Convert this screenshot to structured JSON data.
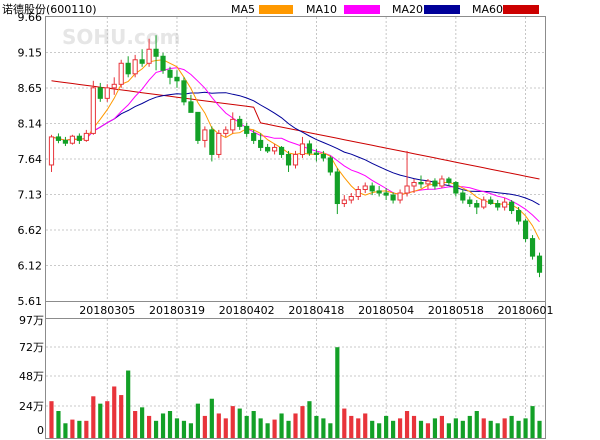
{
  "title": "诺德股份(600110)",
  "watermark": "SOHU.com",
  "colors": {
    "up": "#e8343b",
    "down": "#13a027",
    "ma5": "#ff9900",
    "ma10": "#ff00ff",
    "ma20": "#000099",
    "ma60": "#cc0000",
    "grid": "#b9b9b9"
  },
  "legend": [
    {
      "label": "MA5",
      "color": "#ff9900"
    },
    {
      "label": "MA10",
      "color": "#ff00ff"
    },
    {
      "label": "MA20",
      "color": "#000099"
    },
    {
      "label": "MA60",
      "color": "#cc0000"
    }
  ],
  "chart_data": [
    {
      "type": "candlestick",
      "title": "诺德股份(600110)",
      "ylim": [
        5.61,
        9.66
      ],
      "y_ticks": [
        "9.66",
        "9.15",
        "8.65",
        "8.14",
        "7.64",
        "7.13",
        "6.62",
        "6.12",
        "5.61"
      ],
      "x_tick_labels": [
        "20180305",
        "20180319",
        "20180402",
        "20180418",
        "20180504",
        "20180518",
        "20180601"
      ],
      "x_tick_index": [
        8,
        18,
        28,
        38,
        48,
        58,
        68
      ],
      "ohlc": [
        [
          7.55,
          7.98,
          7.45,
          7.95
        ],
        [
          7.95,
          8.0,
          7.86,
          7.9
        ],
        [
          7.9,
          7.95,
          7.82,
          7.86
        ],
        [
          7.86,
          7.98,
          7.84,
          7.96
        ],
        [
          7.96,
          8.0,
          7.85,
          7.9
        ],
        [
          7.9,
          8.05,
          7.88,
          8.0
        ],
        [
          8.0,
          8.75,
          7.98,
          8.65
        ],
        [
          8.65,
          8.72,
          8.45,
          8.5
        ],
        [
          8.5,
          8.7,
          8.45,
          8.65
        ],
        [
          8.65,
          8.8,
          8.55,
          8.7
        ],
        [
          8.7,
          9.05,
          8.65,
          9.0
        ],
        [
          9.0,
          9.1,
          8.8,
          8.85
        ],
        [
          8.85,
          9.12,
          8.8,
          9.05
        ],
        [
          9.05,
          9.2,
          8.95,
          9.0
        ],
        [
          9.0,
          9.35,
          8.95,
          9.2
        ],
        [
          9.2,
          9.4,
          8.9,
          9.1
        ],
        [
          9.1,
          9.15,
          8.85,
          8.9
        ],
        [
          8.9,
          8.95,
          8.7,
          8.8
        ],
        [
          8.8,
          8.9,
          8.65,
          8.75
        ],
        [
          8.75,
          8.8,
          8.4,
          8.45
        ],
        [
          8.45,
          8.55,
          8.3,
          8.3
        ],
        [
          8.3,
          8.3,
          7.85,
          7.9
        ],
        [
          7.9,
          8.1,
          7.8,
          8.05
        ],
        [
          8.05,
          8.1,
          7.6,
          7.7
        ],
        [
          7.7,
          8.05,
          7.65,
          8.0
        ],
        [
          8.0,
          8.1,
          7.95,
          8.05
        ],
        [
          8.05,
          8.3,
          8.0,
          8.2
        ],
        [
          8.2,
          8.25,
          8.05,
          8.1
        ],
        [
          8.1,
          8.15,
          7.95,
          8.0
        ],
        [
          8.0,
          8.05,
          7.85,
          7.9
        ],
        [
          7.9,
          8.0,
          7.75,
          7.8
        ],
        [
          7.8,
          7.85,
          7.72,
          7.75
        ],
        [
          7.75,
          7.85,
          7.7,
          7.8
        ],
        [
          7.8,
          7.82,
          7.65,
          7.7
        ],
        [
          7.7,
          7.75,
          7.45,
          7.55
        ],
        [
          7.55,
          7.75,
          7.5,
          7.7
        ],
        [
          7.7,
          7.95,
          7.65,
          7.85
        ],
        [
          7.85,
          7.9,
          7.68,
          7.72
        ],
        [
          7.72,
          7.78,
          7.6,
          7.7
        ],
        [
          7.7,
          7.75,
          7.6,
          7.65
        ],
        [
          7.65,
          7.68,
          7.4,
          7.45
        ],
        [
          7.45,
          7.5,
          6.85,
          7.0
        ],
        [
          7.0,
          7.12,
          6.95,
          7.05
        ],
        [
          7.05,
          7.15,
          7.0,
          7.1
        ],
        [
          7.1,
          7.25,
          7.05,
          7.2
        ],
        [
          7.2,
          7.3,
          7.15,
          7.25
        ],
        [
          7.25,
          7.3,
          7.12,
          7.18
        ],
        [
          7.18,
          7.25,
          7.1,
          7.15
        ],
        [
          7.15,
          7.22,
          7.05,
          7.12
        ],
        [
          7.12,
          7.16,
          7.0,
          7.05
        ],
        [
          7.05,
          7.2,
          7.0,
          7.15
        ],
        [
          7.15,
          7.75,
          7.1,
          7.25
        ],
        [
          7.25,
          7.35,
          7.15,
          7.3
        ],
        [
          7.3,
          7.4,
          7.22,
          7.28
        ],
        [
          7.28,
          7.35,
          7.2,
          7.32
        ],
        [
          7.32,
          7.36,
          7.2,
          7.25
        ],
        [
          7.25,
          7.4,
          7.22,
          7.35
        ],
        [
          7.35,
          7.38,
          7.25,
          7.3
        ],
        [
          7.3,
          7.32,
          7.1,
          7.15
        ],
        [
          7.15,
          7.2,
          7.0,
          7.05
        ],
        [
          7.05,
          7.1,
          6.95,
          7.0
        ],
        [
          7.0,
          7.05,
          6.85,
          6.95
        ],
        [
          6.95,
          7.1,
          6.92,
          7.05
        ],
        [
          7.05,
          7.1,
          6.98,
          7.0
        ],
        [
          7.0,
          7.05,
          6.9,
          6.95
        ],
        [
          6.95,
          7.08,
          6.9,
          7.02
        ],
        [
          7.02,
          7.05,
          6.85,
          6.9
        ],
        [
          6.9,
          6.95,
          6.7,
          6.75
        ],
        [
          6.75,
          6.78,
          6.45,
          6.5
        ],
        [
          6.5,
          6.55,
          6.2,
          6.25
        ],
        [
          6.25,
          6.3,
          5.95,
          6.02
        ]
      ],
      "volume_ylim": [
        0,
        97
      ],
      "volume_ticks": [
        "97万",
        "72万",
        "48万",
        "24万",
        "0"
      ],
      "volume": [
        30,
        22,
        12,
        15,
        14,
        14,
        34,
        28,
        30,
        42,
        35,
        55,
        22,
        25,
        18,
        14,
        20,
        22,
        16,
        14,
        12,
        28,
        18,
        32,
        20,
        16,
        26,
        24,
        18,
        22,
        16,
        12,
        15,
        20,
        14,
        20,
        26,
        30,
        18,
        16,
        12,
        74,
        24,
        18,
        16,
        20,
        14,
        12,
        18,
        14,
        16,
        22,
        18,
        14,
        12,
        16,
        18,
        12,
        16,
        14,
        18,
        22,
        16,
        14,
        12,
        16,
        18,
        14,
        16,
        26,
        14
      ]
    }
  ]
}
